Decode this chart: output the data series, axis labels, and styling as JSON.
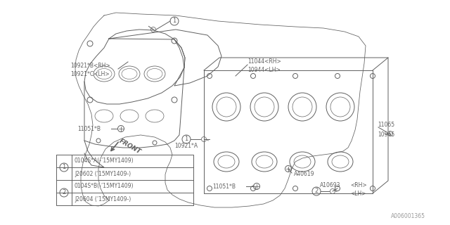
{
  "bg_color": "#ffffff",
  "line_color": "#606060",
  "lw": 0.7,
  "watermark": "A006001365",
  "labels": {
    "10921B_RH": "10921*B<RH>",
    "10921C_LH": "10921*C<LH>",
    "11044_RH": "11044<RH>",
    "10944_LH": "10944<LH>",
    "11051B_left": "11051*B",
    "11051B_right": "11051*B",
    "11065": "11065",
    "10945": "10945",
    "A40619": "A40619",
    "A10693_rh": "<RH>",
    "A10693_lh": "<LH>",
    "A10693": "A10693",
    "10921A": "10921*A",
    "FRONT": "FRONT"
  },
  "legend_rows": [
    [
      "1",
      "0104S*A(-’15MY1409)"
    ],
    [
      "",
      "J20602 (’15MY1409-)"
    ],
    [
      "2",
      "0104S*B(-’15MY1409)"
    ],
    [
      "",
      "J20604 (’15MY1409-)"
    ]
  ]
}
